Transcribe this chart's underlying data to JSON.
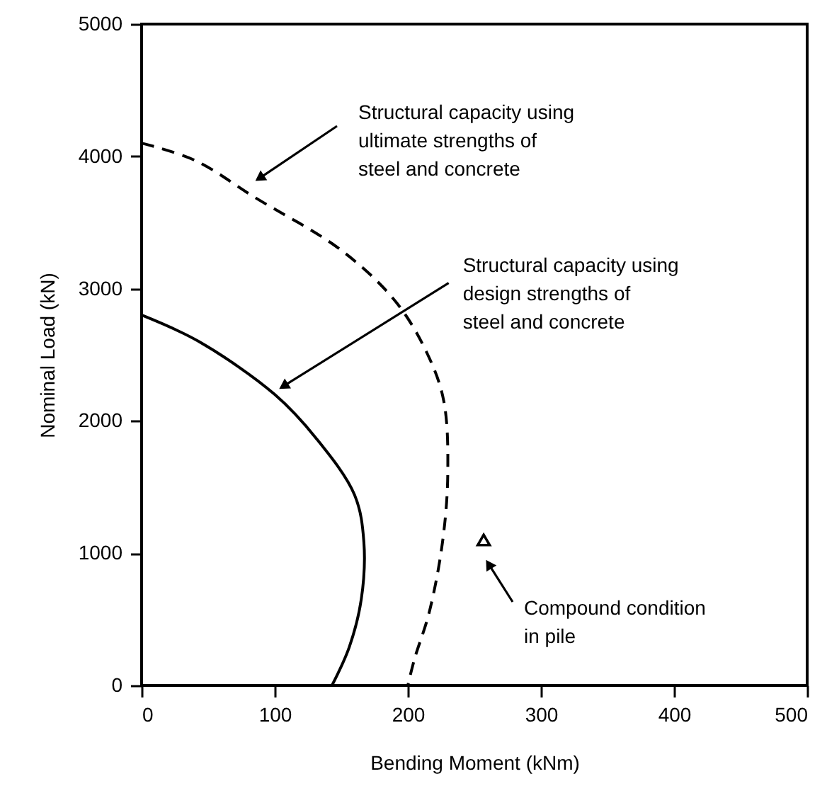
{
  "chart_data": {
    "type": "line",
    "xlabel": "Bending Moment (kNm)",
    "ylabel": "Nominal Load (kN)",
    "xlim": [
      0,
      500
    ],
    "xticks": [
      0,
      100,
      200,
      300,
      400,
      500
    ],
    "ylim": [
      0,
      5000
    ],
    "yticks": [
      0,
      1000,
      2000,
      3000,
      4000,
      5000
    ],
    "grid": false,
    "series": [
      {
        "color": "#000000",
        "line_style": "dashed",
        "x": [
          0,
          40,
          85,
          150,
          191,
          215,
          227,
          230,
          226,
          216,
          205,
          200
        ],
        "values": [
          4100,
          3970,
          3690,
          3290,
          2900,
          2500,
          2150,
          1600,
          1080,
          550,
          200,
          0
        ]
      },
      {
        "color": "#000000",
        "line_style": "solid",
        "x": [
          0,
          43,
          100,
          131,
          160,
          167,
          165,
          156,
          143
        ],
        "values": [
          2800,
          2600,
          2200,
          1870,
          1440,
          1080,
          650,
          290,
          0
        ]
      },
      {
        "type": "scatter",
        "marker": "triangle",
        "color": "#000000",
        "x": [
          257
        ],
        "values": [
          1100
        ]
      }
    ],
    "annotations": [
      "Structural capacity using\nultimate strengths of\nsteel and concrete",
      {
        "text": "Structural capacity using\ndesign strengths of\nsteel and concrete",
        "x": 103,
        "y": 2240
      },
      "Compound condition\nin pile"
    ]
  }
}
